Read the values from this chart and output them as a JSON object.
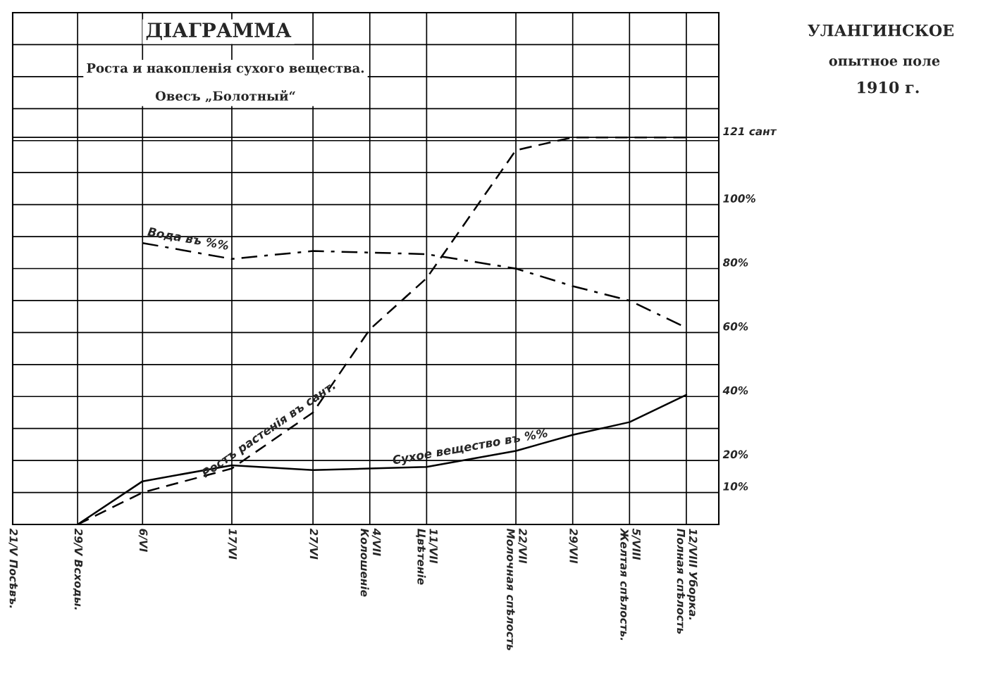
{
  "chart_data": {
    "type": "line",
    "title": "ДІАГРАММА",
    "subtitle": "Роста и накопленія сухого вещества.\nОвесъ „Болотный“",
    "annotations": [
      "УЛАНГИНСКОЕ",
      "опытное поле",
      "1910 г."
    ],
    "xticks": [
      {
        "value": "1910-05-21",
        "label": "21/V Посѣвъ."
      },
      {
        "value": "1910-05-29",
        "label": "29/V Всходы."
      },
      {
        "value": "1910-06-06",
        "label": "6/VI"
      },
      {
        "value": "1910-06-17",
        "label": "17/VI"
      },
      {
        "value": "1910-06-27",
        "label": "27/VI"
      },
      {
        "value": "1910-07-04",
        "label": "4/VII\nКолошеніе"
      },
      {
        "value": "1910-07-11",
        "label": "11/VII\nЦвѣтеніе"
      },
      {
        "value": "1910-07-22",
        "label": "22/VII\nМолочная спѣлость"
      },
      {
        "value": "1910-07-29",
        "label": "29/VII"
      },
      {
        "value": "1910-08-05",
        "label": "5/VIII\nЖелтая спѣлость."
      },
      {
        "value": "1910-08-12",
        "label": "12/VIII Уборка.\nПолная спѣлость"
      }
    ],
    "xlim": [
      "1910-05-21",
      "1910-08-16"
    ],
    "ylim": [
      0,
      160
    ],
    "yticks": [
      {
        "value": 10,
        "label": "10%"
      },
      {
        "value": 20,
        "label": "20%"
      },
      {
        "value": 30,
        "label": null
      },
      {
        "value": 40,
        "label": "40%"
      },
      {
        "value": 50,
        "label": null
      },
      {
        "value": 60,
        "label": "60%"
      },
      {
        "value": 70,
        "label": null
      },
      {
        "value": 80,
        "label": "80%"
      },
      {
        "value": 90,
        "label": null
      },
      {
        "value": 100,
        "label": "100%"
      },
      {
        "value": 110,
        "label": null
      },
      {
        "value": 120,
        "label": null
      },
      {
        "value": 121,
        "label": "121 сант"
      },
      {
        "value": 130,
        "label": null
      },
      {
        "value": 140,
        "label": null
      },
      {
        "value": 150,
        "label": null
      }
    ],
    "grid": true,
    "legend": false,
    "series": [
      {
        "name": "Ростъ растенія въ сант.",
        "color": "#000000",
        "line_style": "dashed",
        "x": [
          "1910-05-29",
          "1910-06-06",
          "1910-06-17",
          "1910-06-27",
          "1910-07-04",
          "1910-07-11",
          "1910-07-22",
          "1910-07-29",
          "1910-08-05",
          "1910-08-12"
        ],
        "values": [
          0,
          10,
          17.5,
          35,
          61,
          77,
          117,
          121,
          121,
          121
        ]
      },
      {
        "name": "Вода въ %%",
        "color": "#000000",
        "line_style": "dashdot",
        "x": [
          "1910-06-06",
          "1910-06-17",
          "1910-06-27",
          "1910-07-04",
          "1910-07-11",
          "1910-07-22",
          "1910-07-29",
          "1910-08-05",
          "1910-08-12"
        ],
        "values": [
          88,
          83,
          85.5,
          85,
          84.5,
          80,
          74.5,
          70,
          61.5
        ]
      },
      {
        "name": "Сухое вещество въ %%",
        "color": "#000000",
        "line_style": "solid",
        "x": [
          "1910-05-29",
          "1910-06-06",
          "1910-06-17",
          "1910-06-27",
          "1910-07-04",
          "1910-07-11",
          "1910-07-22",
          "1910-07-29",
          "1910-08-05",
          "1910-08-12"
        ],
        "values": [
          0,
          13.5,
          18.5,
          17,
          17.5,
          18,
          23,
          28,
          32,
          40.5
        ]
      }
    ]
  }
}
